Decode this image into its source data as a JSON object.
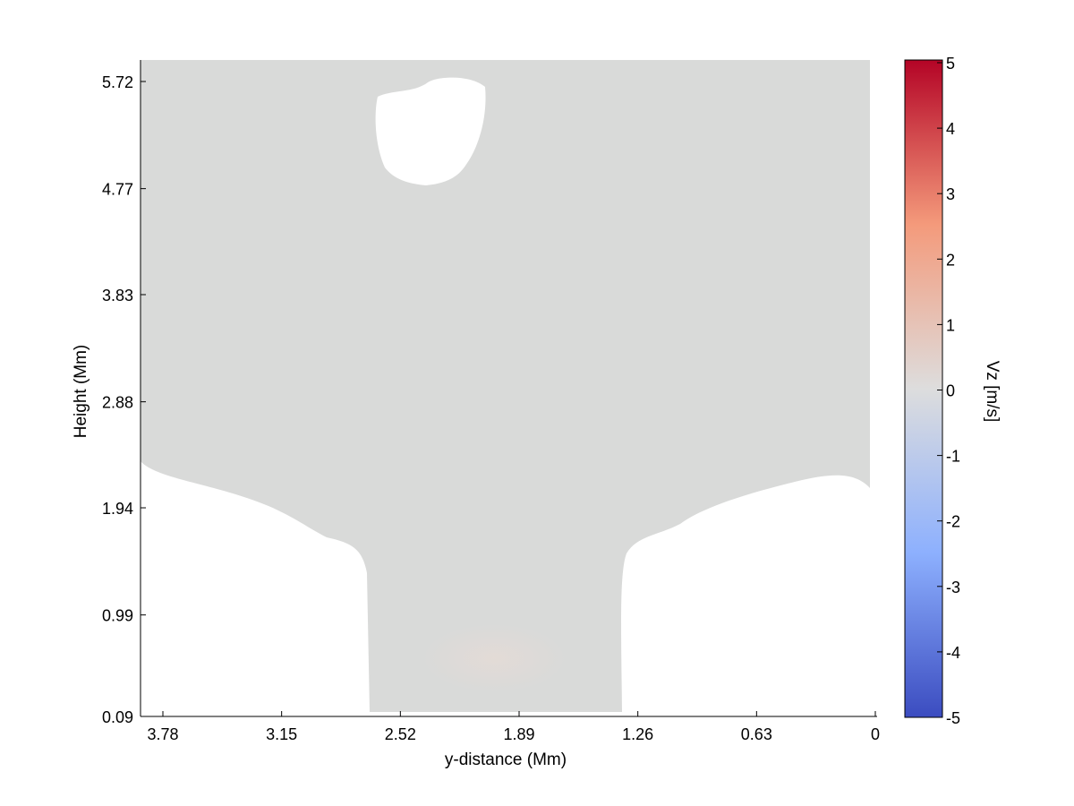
{
  "chart_data": {
    "type": "heatmap",
    "title": "",
    "xlabel": "y-distance (Mm)",
    "ylabel": "Height (Mm)",
    "x_direction": "reversed",
    "xlim": [
      3.98,
      0
    ],
    "ylim": [
      0.09,
      5.83
    ],
    "x_ticks": [
      "3.78",
      "3.15",
      "2.52",
      "1.89",
      "1.26",
      "0.63",
      "0"
    ],
    "y_ticks": [
      "0.09",
      "0.99",
      "1.94",
      "2.88",
      "3.83",
      "4.77",
      "5.72"
    ],
    "field_description": "Nearly uniform field close to 0 m/s over the shown region; faint slight positive area near the base around y-distance 1.9–2.3 Mm",
    "field_value_approx": 0,
    "masked_regions": [
      {
        "name": "lower-left",
        "y_distance_range": [
          2.7,
          3.98
        ],
        "height_range": [
          0.09,
          2.3
        ]
      },
      {
        "name": "lower-right",
        "y_distance_range": [
          0,
          1.4
        ],
        "height_range": [
          0.09,
          2.2
        ]
      },
      {
        "name": "upper-blob",
        "y_distance_range": [
          2.1,
          2.7
        ],
        "height_range": [
          4.85,
          5.65
        ]
      }
    ],
    "colorbar": {
      "label": "Vz [m/s]",
      "range": [
        -5,
        5
      ],
      "ticks": [
        "5",
        "4",
        "3",
        "2",
        "1",
        "0",
        "-1",
        "-2",
        "-3",
        "-4",
        "-5"
      ],
      "colormap": "coolwarm",
      "colors": {
        "min": "#3b4cc0",
        "mid": "#dddddd",
        "max": "#b40426"
      }
    },
    "grid": false
  },
  "colors": {
    "field": "#d9dad9",
    "mask": "#ffffff",
    "warm_tint": "#e3dbd7"
  }
}
